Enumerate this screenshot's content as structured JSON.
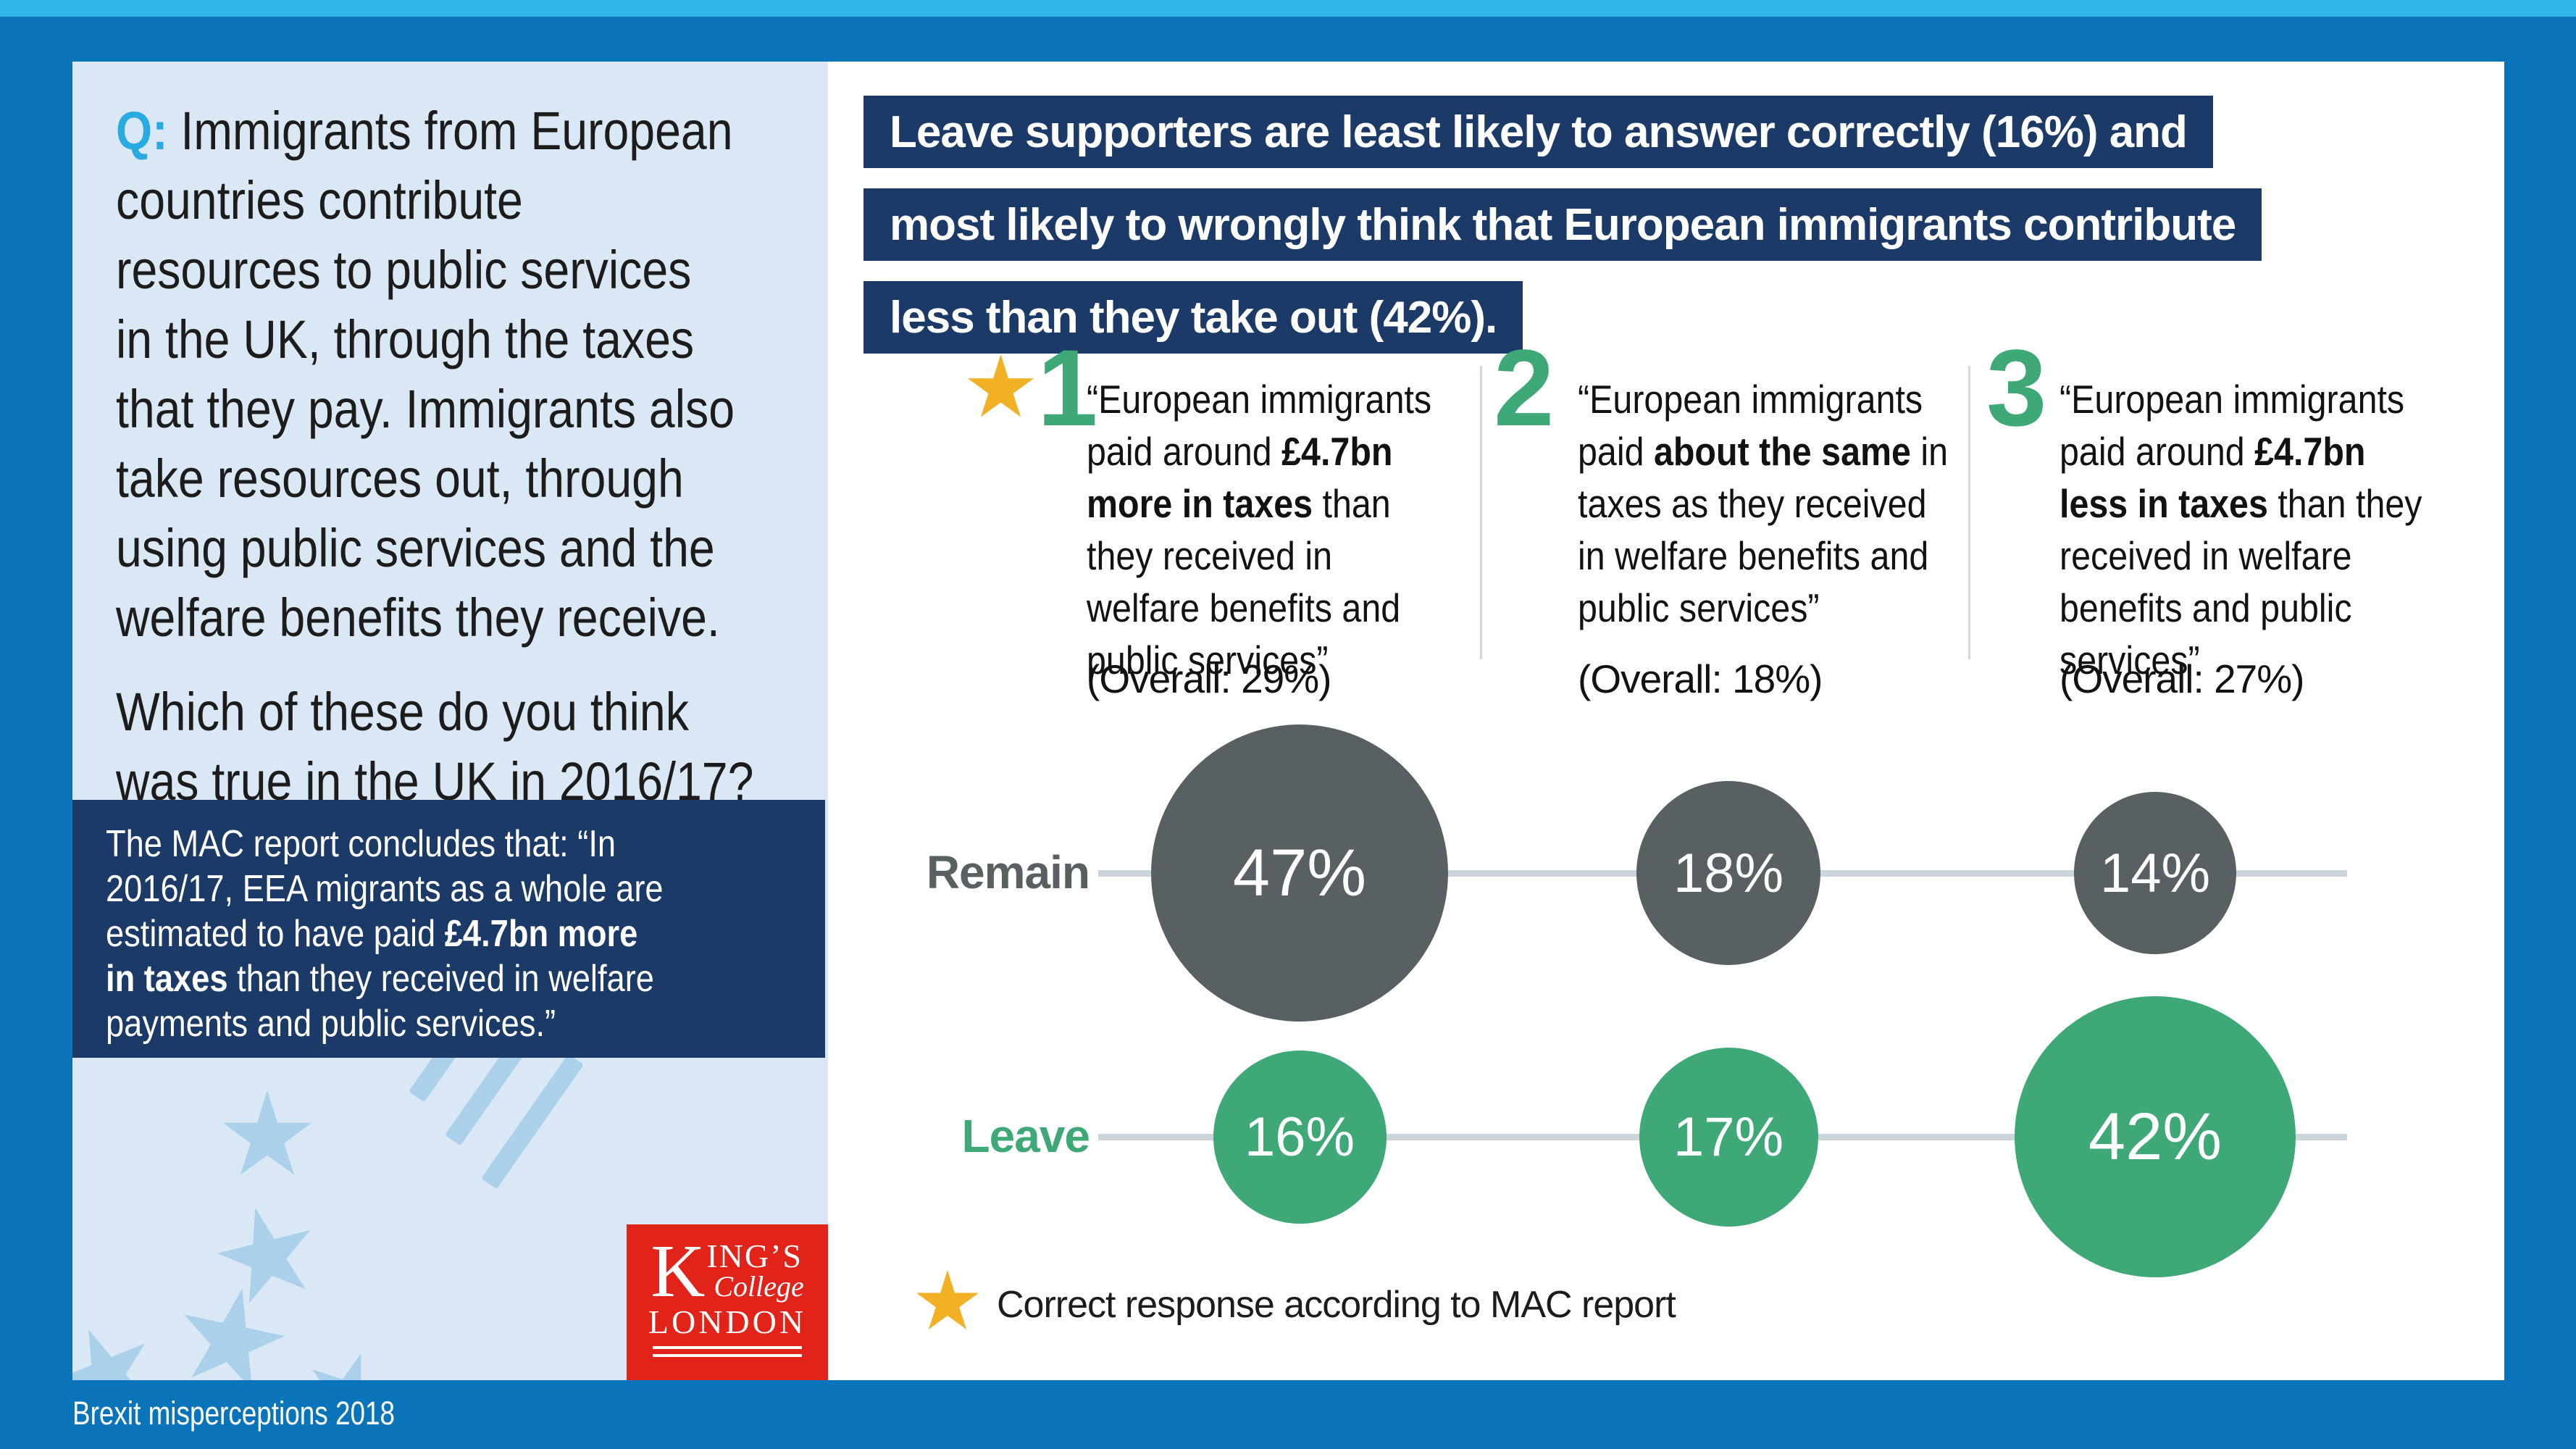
{
  "colors": {
    "border_blue": "#0974b9",
    "cyan_strip": "#30b7e8",
    "panel_light_blue": "#d9e8f4",
    "watermark_blue": "#abd0ea",
    "navy": "#1c3a67",
    "green": "#3fa877",
    "dark_grey": "#586064",
    "gold_star": "#f2b024",
    "kings_red": "#e2231a",
    "q_cyan": "#29aae1",
    "row_line_grey": "#ccd5dc"
  },
  "left_panel": {
    "question_segments": [
      {
        "text": "Q:",
        "bold": true,
        "color": "#29aae1"
      },
      {
        "text": " Immigrants from European\ncountries contribute\nresources to public services\nin the UK, through the taxes\nthat they pay. Immigrants also\ntake resources out, through\nusing public services and the\nwelfare benefits they receive."
      }
    ],
    "question2": "Which of these do you think\nwas true in the UK in 2016/17?",
    "mac_segments": [
      {
        "text": "The MAC report concludes that: “In\n2016/17, EEA migrants as a whole are\nestimated to have paid "
      },
      {
        "text": "£4.7bn more\nin taxes",
        "bold": true
      },
      {
        "text": " than they received in welfare\npayments and public services.”"
      }
    ],
    "logo": {
      "k": "K",
      "ings": "ING’S",
      "college": "College",
      "london": "LONDON"
    }
  },
  "header": {
    "lines": [
      "Leave supporters are least likely to answer correctly (16%) and",
      "most likely to wrongly think that European immigrants contribute",
      "less than they take out (42%)."
    ]
  },
  "options": [
    {
      "number": "1",
      "starred": true,
      "segments": [
        {
          "text": "“European immigrants\npaid around "
        },
        {
          "text": "£4.7bn\nmore in taxes",
          "bold": true
        },
        {
          "text": " than\nthey received in\nwelfare benefits and\npublic services”"
        }
      ],
      "overall": "(Overall: 29%)"
    },
    {
      "number": "2",
      "starred": false,
      "segments": [
        {
          "text": "“European immigrants\npaid "
        },
        {
          "text": "about the same",
          "bold": true
        },
        {
          "text": " in\ntaxes as they received\nin welfare benefits and\npublic services”"
        }
      ],
      "overall": "(Overall: 18%)"
    },
    {
      "number": "3",
      "starred": false,
      "segments": [
        {
          "text": "“European immigrants\npaid around "
        },
        {
          "text": "£4.7bn\nless in taxes",
          "bold": true
        },
        {
          "text": " than they\nreceived in welfare\nbenefits and public\nservices”"
        }
      ],
      "overall": "(Overall: 27%)"
    }
  ],
  "chart_data": {
    "type": "bubble",
    "rows": [
      "Remain",
      "Leave"
    ],
    "columns": [
      "1",
      "2",
      "3"
    ],
    "series": [
      {
        "name": "Remain",
        "values": [
          47,
          18,
          14
        ],
        "color": "#586064"
      },
      {
        "name": "Leave",
        "values": [
          16,
          17,
          42
        ],
        "color": "#3fa877"
      }
    ],
    "unit": "%",
    "overall_by_column": [
      29,
      18,
      27
    ],
    "value_label_format": "{v}%",
    "layout": "bubble size proportional to sqrt(value); grey connector line per row"
  },
  "legend": {
    "label": "Correct response according to MAC report"
  },
  "footer": {
    "label": "Brexit misperceptions 2018"
  }
}
